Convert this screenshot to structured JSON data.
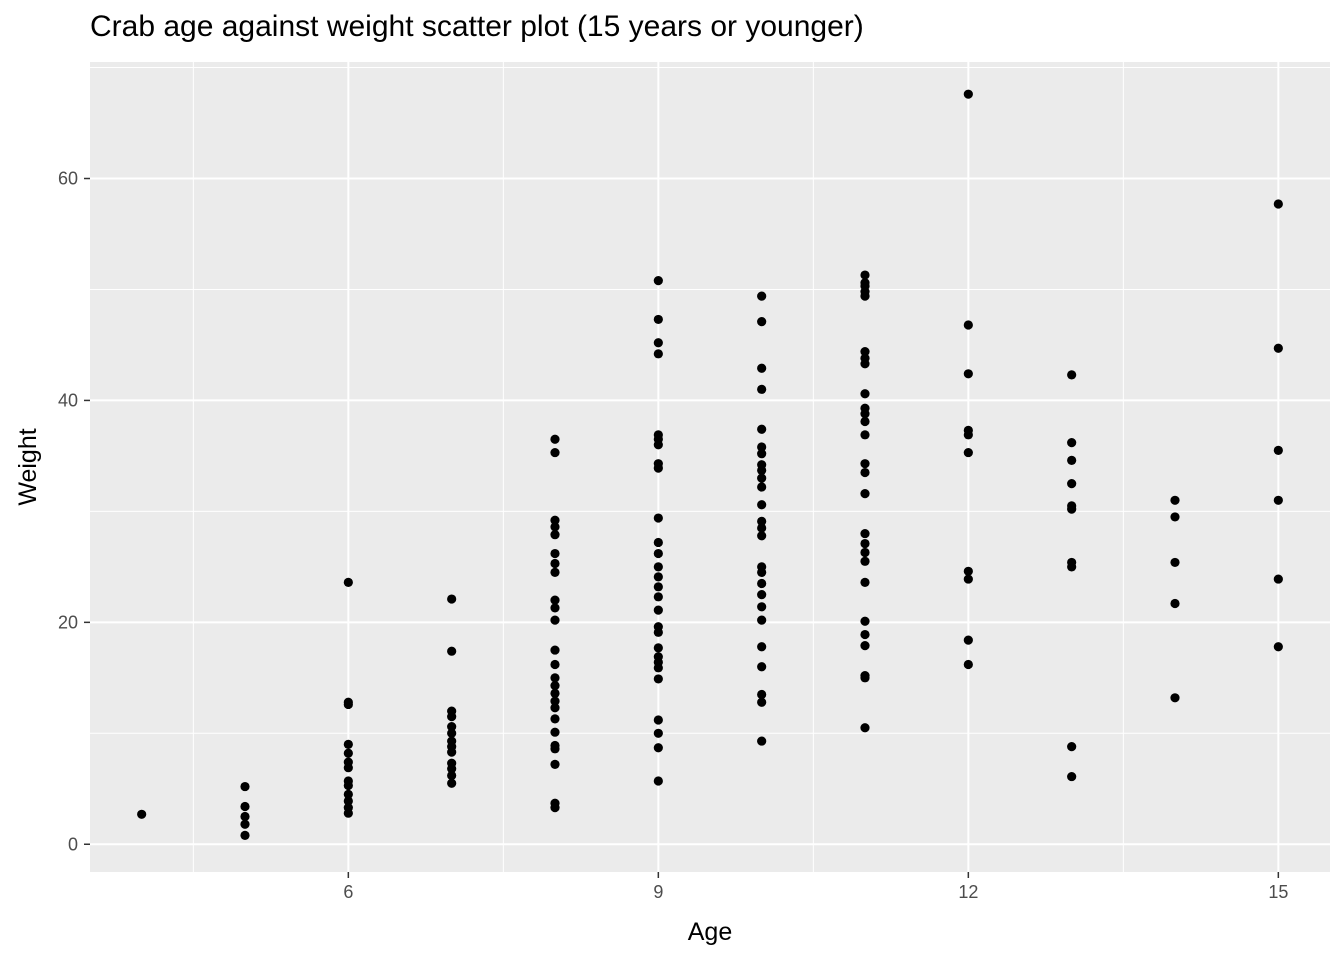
{
  "chart_data": {
    "type": "scatter",
    "title": "Crab age against weight scatter plot (15 years or younger)",
    "xlabel": "Age",
    "ylabel": "Weight",
    "xlim": [
      3.5,
      15.5
    ],
    "ylim": [
      -2.5,
      70.5
    ],
    "x_ticks": [
      6,
      9,
      12,
      15
    ],
    "x_tick_labels": [
      "6",
      "9",
      "12",
      "15"
    ],
    "y_ticks": [
      0,
      20,
      40,
      60
    ],
    "y_tick_labels": [
      "0",
      "20",
      "40",
      "60"
    ],
    "grid": true,
    "legend": "none",
    "colors": {
      "panel": "#EBEBEB",
      "grid": "#FFFFFF",
      "point": "#000000",
      "tick_text": "#4D4D4D"
    },
    "points": [
      {
        "x": 4,
        "y": 2.7
      },
      {
        "x": 5,
        "y": 0.8
      },
      {
        "x": 5,
        "y": 1.8
      },
      {
        "x": 5,
        "y": 2.5
      },
      {
        "x": 5,
        "y": 3.4
      },
      {
        "x": 5,
        "y": 5.2
      },
      {
        "x": 6,
        "y": 2.8
      },
      {
        "x": 6,
        "y": 3.3
      },
      {
        "x": 6,
        "y": 3.9
      },
      {
        "x": 6,
        "y": 4.5
      },
      {
        "x": 6,
        "y": 5.3
      },
      {
        "x": 6,
        "y": 5.7
      },
      {
        "x": 6,
        "y": 6.9
      },
      {
        "x": 6,
        "y": 7.4
      },
      {
        "x": 6,
        "y": 8.2
      },
      {
        "x": 6,
        "y": 9.0
      },
      {
        "x": 6,
        "y": 12.6
      },
      {
        "x": 6,
        "y": 12.8
      },
      {
        "x": 6,
        "y": 23.6
      },
      {
        "x": 7,
        "y": 5.5
      },
      {
        "x": 7,
        "y": 6.2
      },
      {
        "x": 7,
        "y": 6.8
      },
      {
        "x": 7,
        "y": 7.3
      },
      {
        "x": 7,
        "y": 8.3
      },
      {
        "x": 7,
        "y": 8.8
      },
      {
        "x": 7,
        "y": 9.3
      },
      {
        "x": 7,
        "y": 10.0
      },
      {
        "x": 7,
        "y": 10.6
      },
      {
        "x": 7,
        "y": 11.5
      },
      {
        "x": 7,
        "y": 12.0
      },
      {
        "x": 7,
        "y": 17.4
      },
      {
        "x": 7,
        "y": 22.1
      },
      {
        "x": 8,
        "y": 3.3
      },
      {
        "x": 8,
        "y": 3.7
      },
      {
        "x": 8,
        "y": 7.2
      },
      {
        "x": 8,
        "y": 8.6
      },
      {
        "x": 8,
        "y": 8.9
      },
      {
        "x": 8,
        "y": 10.1
      },
      {
        "x": 8,
        "y": 11.3
      },
      {
        "x": 8,
        "y": 12.3
      },
      {
        "x": 8,
        "y": 12.9
      },
      {
        "x": 8,
        "y": 13.6
      },
      {
        "x": 8,
        "y": 14.3
      },
      {
        "x": 8,
        "y": 15.0
      },
      {
        "x": 8,
        "y": 16.2
      },
      {
        "x": 8,
        "y": 17.5
      },
      {
        "x": 8,
        "y": 20.2
      },
      {
        "x": 8,
        "y": 21.3
      },
      {
        "x": 8,
        "y": 22.0
      },
      {
        "x": 8,
        "y": 24.5
      },
      {
        "x": 8,
        "y": 25.3
      },
      {
        "x": 8,
        "y": 26.2
      },
      {
        "x": 8,
        "y": 27.9
      },
      {
        "x": 8,
        "y": 28.6
      },
      {
        "x": 8,
        "y": 29.2
      },
      {
        "x": 8,
        "y": 35.3
      },
      {
        "x": 8,
        "y": 36.5
      },
      {
        "x": 9,
        "y": 5.7
      },
      {
        "x": 9,
        "y": 8.7
      },
      {
        "x": 9,
        "y": 10.0
      },
      {
        "x": 9,
        "y": 11.2
      },
      {
        "x": 9,
        "y": 14.9
      },
      {
        "x": 9,
        "y": 15.9
      },
      {
        "x": 9,
        "y": 16.4
      },
      {
        "x": 9,
        "y": 16.9
      },
      {
        "x": 9,
        "y": 17.7
      },
      {
        "x": 9,
        "y": 19.1
      },
      {
        "x": 9,
        "y": 19.6
      },
      {
        "x": 9,
        "y": 21.1
      },
      {
        "x": 9,
        "y": 22.3
      },
      {
        "x": 9,
        "y": 23.2
      },
      {
        "x": 9,
        "y": 24.1
      },
      {
        "x": 9,
        "y": 25.0
      },
      {
        "x": 9,
        "y": 26.2
      },
      {
        "x": 9,
        "y": 27.2
      },
      {
        "x": 9,
        "y": 29.4
      },
      {
        "x": 9,
        "y": 33.9
      },
      {
        "x": 9,
        "y": 34.3
      },
      {
        "x": 9,
        "y": 36.0
      },
      {
        "x": 9,
        "y": 36.5
      },
      {
        "x": 9,
        "y": 36.9
      },
      {
        "x": 9,
        "y": 44.2
      },
      {
        "x": 9,
        "y": 45.2
      },
      {
        "x": 9,
        "y": 47.3
      },
      {
        "x": 9,
        "y": 50.8
      },
      {
        "x": 10,
        "y": 9.3
      },
      {
        "x": 10,
        "y": 12.8
      },
      {
        "x": 10,
        "y": 13.5
      },
      {
        "x": 10,
        "y": 16.0
      },
      {
        "x": 10,
        "y": 17.8
      },
      {
        "x": 10,
        "y": 20.2
      },
      {
        "x": 10,
        "y": 21.4
      },
      {
        "x": 10,
        "y": 22.5
      },
      {
        "x": 10,
        "y": 23.5
      },
      {
        "x": 10,
        "y": 24.5
      },
      {
        "x": 10,
        "y": 25.0
      },
      {
        "x": 10,
        "y": 27.8
      },
      {
        "x": 10,
        "y": 28.5
      },
      {
        "x": 10,
        "y": 29.1
      },
      {
        "x": 10,
        "y": 30.6
      },
      {
        "x": 10,
        "y": 32.2
      },
      {
        "x": 10,
        "y": 33.0
      },
      {
        "x": 10,
        "y": 33.7
      },
      {
        "x": 10,
        "y": 34.2
      },
      {
        "x": 10,
        "y": 35.2
      },
      {
        "x": 10,
        "y": 35.8
      },
      {
        "x": 10,
        "y": 37.4
      },
      {
        "x": 10,
        "y": 41.0
      },
      {
        "x": 10,
        "y": 42.9
      },
      {
        "x": 10,
        "y": 47.1
      },
      {
        "x": 10,
        "y": 49.4
      },
      {
        "x": 11,
        "y": 10.5
      },
      {
        "x": 11,
        "y": 15.0
      },
      {
        "x": 11,
        "y": 15.2
      },
      {
        "x": 11,
        "y": 17.9
      },
      {
        "x": 11,
        "y": 18.9
      },
      {
        "x": 11,
        "y": 20.1
      },
      {
        "x": 11,
        "y": 23.6
      },
      {
        "x": 11,
        "y": 25.5
      },
      {
        "x": 11,
        "y": 26.3
      },
      {
        "x": 11,
        "y": 27.1
      },
      {
        "x": 11,
        "y": 28.0
      },
      {
        "x": 11,
        "y": 31.6
      },
      {
        "x": 11,
        "y": 33.5
      },
      {
        "x": 11,
        "y": 34.3
      },
      {
        "x": 11,
        "y": 36.9
      },
      {
        "x": 11,
        "y": 38.1
      },
      {
        "x": 11,
        "y": 38.8
      },
      {
        "x": 11,
        "y": 39.3
      },
      {
        "x": 11,
        "y": 40.6
      },
      {
        "x": 11,
        "y": 43.3
      },
      {
        "x": 11,
        "y": 43.8
      },
      {
        "x": 11,
        "y": 44.4
      },
      {
        "x": 11,
        "y": 49.4
      },
      {
        "x": 11,
        "y": 49.8
      },
      {
        "x": 11,
        "y": 50.3
      },
      {
        "x": 11,
        "y": 50.6
      },
      {
        "x": 11,
        "y": 51.3
      },
      {
        "x": 12,
        "y": 16.2
      },
      {
        "x": 12,
        "y": 18.4
      },
      {
        "x": 12,
        "y": 23.9
      },
      {
        "x": 12,
        "y": 24.6
      },
      {
        "x": 12,
        "y": 35.3
      },
      {
        "x": 12,
        "y": 36.9
      },
      {
        "x": 12,
        "y": 37.3
      },
      {
        "x": 12,
        "y": 42.4
      },
      {
        "x": 12,
        "y": 46.8
      },
      {
        "x": 12,
        "y": 67.6
      },
      {
        "x": 13,
        "y": 6.1
      },
      {
        "x": 13,
        "y": 8.8
      },
      {
        "x": 13,
        "y": 25.0
      },
      {
        "x": 13,
        "y": 25.4
      },
      {
        "x": 13,
        "y": 30.2
      },
      {
        "x": 13,
        "y": 30.5
      },
      {
        "x": 13,
        "y": 32.5
      },
      {
        "x": 13,
        "y": 34.6
      },
      {
        "x": 13,
        "y": 36.2
      },
      {
        "x": 13,
        "y": 42.3
      },
      {
        "x": 14,
        "y": 13.2
      },
      {
        "x": 14,
        "y": 21.7
      },
      {
        "x": 14,
        "y": 25.4
      },
      {
        "x": 14,
        "y": 29.5
      },
      {
        "x": 14,
        "y": 31.0
      },
      {
        "x": 15,
        "y": 17.8
      },
      {
        "x": 15,
        "y": 23.9
      },
      {
        "x": 15,
        "y": 31.0
      },
      {
        "x": 15,
        "y": 35.5
      },
      {
        "x": 15,
        "y": 44.7
      },
      {
        "x": 15,
        "y": 57.7
      }
    ]
  }
}
